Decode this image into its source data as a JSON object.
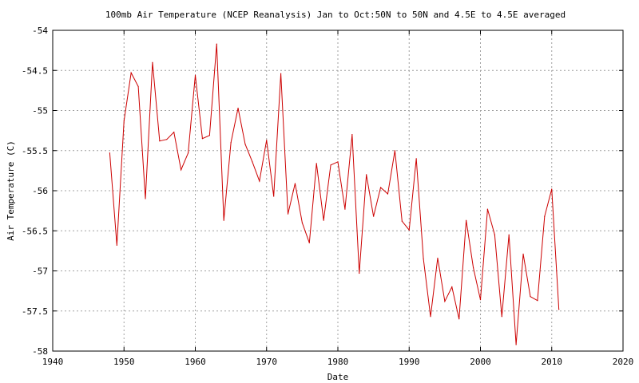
{
  "chart_data": {
    "type": "line",
    "title": "100mb Air Temperature (NCEP Reanalysis) Jan to Oct:50N to 50N and 4.5E to 4.5E averaged",
    "xlabel": "Date",
    "ylabel": "Air Temperature (C)",
    "xlim": [
      1940,
      2020
    ],
    "ylim": [
      -58,
      -54
    ],
    "xticks": [
      1940,
      1950,
      1960,
      1970,
      1980,
      1990,
      2000,
      2010,
      2020
    ],
    "yticks": [
      -54,
      -54.5,
      -55,
      -55.5,
      -56,
      -56.5,
      -57,
      -57.5,
      -58
    ],
    "grid": true,
    "line_color": "#cc0000",
    "series": [
      {
        "x": [
          1948,
          1949,
          1950,
          1951,
          1952,
          1953,
          1954,
          1955,
          1956,
          1957,
          1958,
          1959,
          1960,
          1961,
          1962,
          1963,
          1964,
          1965,
          1966,
          1967,
          1968,
          1969,
          1970,
          1971,
          1972,
          1973,
          1974,
          1975,
          1976,
          1977,
          1978,
          1979,
          1980,
          1981,
          1982,
          1983,
          1984,
          1985,
          1986,
          1987,
          1988,
          1989,
          1990,
          1991,
          1992,
          1993,
          1994,
          1995,
          1996,
          1997,
          1998,
          1999,
          2000,
          2001,
          2002,
          2003,
          2004,
          2005,
          2006,
          2007,
          2008,
          2009,
          2010,
          2011
        ],
        "values": [
          -55.53,
          -56.68,
          -55.13,
          -54.53,
          -54.7,
          -56.1,
          -54.4,
          -55.38,
          -55.36,
          -55.27,
          -55.74,
          -55.53,
          -54.56,
          -55.35,
          -55.31,
          -54.17,
          -56.37,
          -55.4,
          -54.97,
          -55.42,
          -55.64,
          -55.88,
          -55.37,
          -56.07,
          -54.54,
          -56.29,
          -55.91,
          -56.4,
          -56.65,
          -55.66,
          -56.37,
          -55.68,
          -55.64,
          -56.23,
          -55.3,
          -57.03,
          -55.8,
          -56.32,
          -55.96,
          -56.04,
          -55.5,
          -56.38,
          -56.49,
          -55.6,
          -56.85,
          -57.57,
          -56.84,
          -57.38,
          -57.2,
          -57.6,
          -56.37,
          -56.96,
          -57.36,
          -56.23,
          -56.55,
          -57.57,
          -56.55,
          -57.92,
          -56.79,
          -57.32,
          -57.37,
          -56.32,
          -55.98,
          -57.48
        ]
      }
    ]
  }
}
